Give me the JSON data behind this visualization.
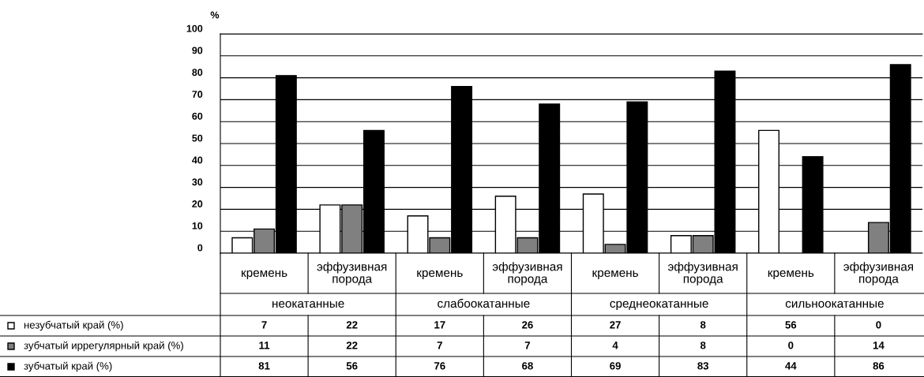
{
  "chart_data": {
    "type": "bar",
    "ylabel": "%",
    "categories": [
      "кремень",
      "эффузивная порода",
      "кремень",
      "эффузивная порода",
      "кремень",
      "эффузивная порода",
      "кремень",
      "эффузивная порода"
    ],
    "annotations": [
      "неокатанные",
      "слабоокатанные",
      "среднеокатанные",
      "сильноокатанные"
    ],
    "series": [
      {
        "name": "незубчатый край (%)",
        "color": "#ffffff",
        "values": [
          7,
          22,
          17,
          26,
          27,
          8,
          56,
          0
        ]
      },
      {
        "name": "зубчатый иррегулярный край (%)",
        "color": "#808080",
        "values": [
          11,
          22,
          7,
          7,
          4,
          8,
          0,
          14
        ]
      },
      {
        "name": "зубчатый край (%)",
        "color": "#000000",
        "values": [
          81,
          56,
          76,
          68,
          69,
          83,
          44,
          86
        ]
      }
    ],
    "ylim": [
      0,
      100
    ],
    "yticks": [
      0,
      10,
      20,
      30,
      40,
      50,
      60,
      70,
      80,
      90,
      100
    ],
    "grid": "y",
    "legend": "bottom left",
    "data_labels": true
  }
}
